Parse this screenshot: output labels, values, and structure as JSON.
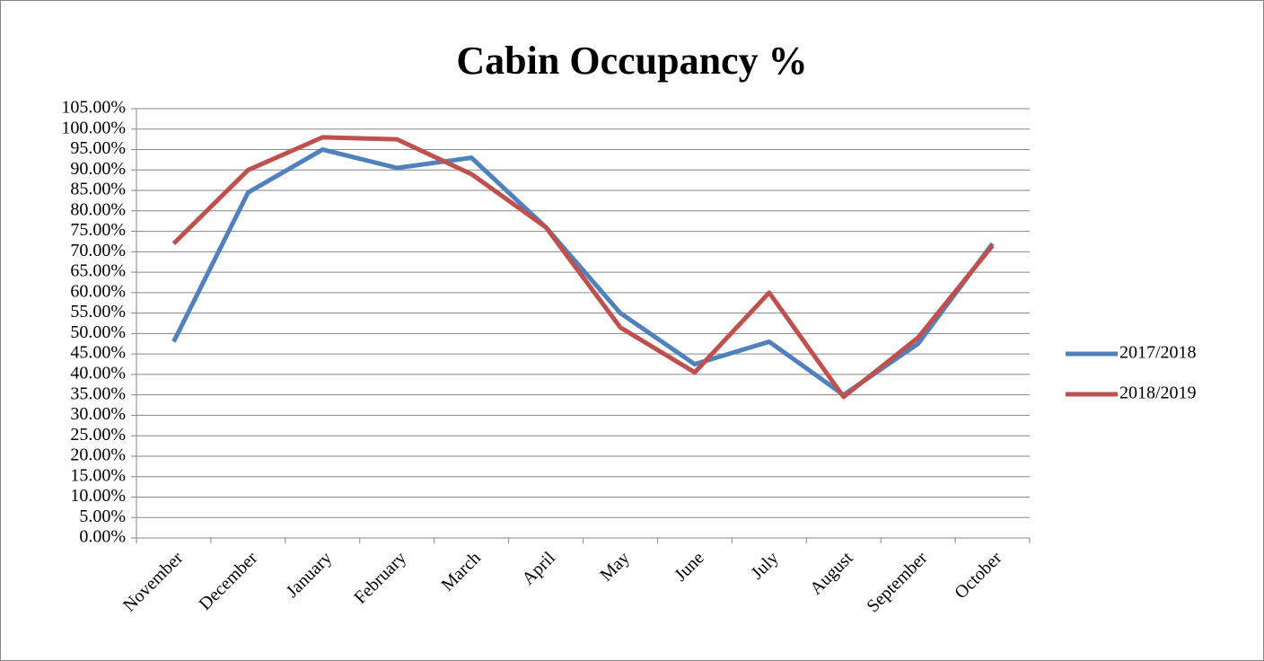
{
  "chart_data": {
    "type": "line",
    "title": "Cabin Occupancy %",
    "categories": [
      "November",
      "December",
      "January",
      "February",
      "March",
      "April",
      "May",
      "June",
      "July",
      "August",
      "September",
      "October"
    ],
    "series": [
      {
        "name": "2017/2018",
        "color": "#4f81bd",
        "values": [
          48,
          84.5,
          95,
          90.5,
          93,
          76,
          55,
          42.5,
          48,
          35,
          47.5,
          72
        ]
      },
      {
        "name": "2018/2019",
        "color": "#c0504d",
        "values": [
          72,
          90,
          98,
          97.5,
          89,
          76,
          51.5,
          40.5,
          60,
          34.5,
          49,
          71.5
        ]
      }
    ],
    "ylim": [
      0,
      105
    ],
    "yticks": [
      {
        "value": 0,
        "label": "0.00%"
      },
      {
        "value": 5,
        "label": "5.00%"
      },
      {
        "value": 10,
        "label": "10.00%"
      },
      {
        "value": 15,
        "label": "15.00%"
      },
      {
        "value": 20,
        "label": "20.00%"
      },
      {
        "value": 25,
        "label": "25.00%"
      },
      {
        "value": 30,
        "label": "30.00%"
      },
      {
        "value": 35,
        "label": "35.00%"
      },
      {
        "value": 40,
        "label": "40.00%"
      },
      {
        "value": 45,
        "label": "45.00%"
      },
      {
        "value": 50,
        "label": "50.00%"
      },
      {
        "value": 55,
        "label": "55.00%"
      },
      {
        "value": 60,
        "label": "60.00%"
      },
      {
        "value": 65,
        "label": "65.00%"
      },
      {
        "value": 70,
        "label": "70.00%"
      },
      {
        "value": 75,
        "label": "75.00%"
      },
      {
        "value": 80,
        "label": "80.00%"
      },
      {
        "value": 85,
        "label": "85.00%"
      },
      {
        "value": 90,
        "label": "90.00%"
      },
      {
        "value": 95,
        "label": "95.00%"
      },
      {
        "value": 100,
        "label": "100.00%"
      },
      {
        "value": 105,
        "label": "105.00%"
      }
    ],
    "grid": true,
    "legend": "right"
  }
}
